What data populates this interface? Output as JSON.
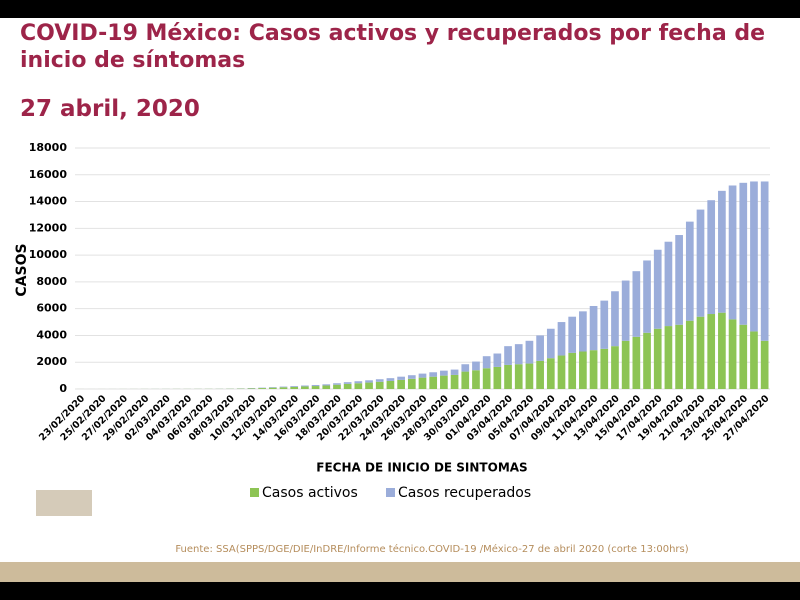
{
  "chart_data": {
    "type": "stacked_bar",
    "title": "COVID-19 México: Casos activos y recuperados por fecha de inicio de síntomas",
    "subtitle": "27 abril, 2020",
    "x_label": "FECHA DE INICIO DE SINTOMAS",
    "y_label": "CASOS",
    "source": "Fuente: SSA(SPPS/DGE/DIE/InDRE/Informe técnico.COVID-19 /México-27 de abril 2020 (corte 13:00hrs)",
    "categories": [
      "23/02/2020",
      null,
      "25/02/2020",
      null,
      "27/02/2020",
      null,
      "29/02/2020",
      null,
      "02/03/2020",
      null,
      "04/03/2020",
      null,
      "06/03/2020",
      null,
      "08/03/2020",
      null,
      "10/03/2020",
      null,
      "12/03/2020",
      null,
      "14/03/2020",
      null,
      "16/03/2020",
      null,
      "18/03/2020",
      null,
      "20/03/2020",
      null,
      "22/03/2020",
      null,
      "24/03/2020",
      null,
      "26/03/2020",
      null,
      "28/03/2020",
      null,
      "30/03/2020",
      null,
      "01/04/2020",
      null,
      "03/04/2020",
      null,
      "05/04/2020",
      null,
      "07/04/2020",
      null,
      "09/04/2020",
      null,
      "11/04/2020",
      null,
      "13/04/2020",
      null,
      "15/04/2020",
      null,
      "17/04/2020",
      null,
      "19/04/2020",
      null,
      "21/04/2020",
      null,
      "23/04/2020",
      null,
      "25/04/2020",
      null,
      "27/04/2020"
    ],
    "series": [
      {
        "name": "Casos activos",
        "color": "#8dc454",
        "values": [
          2,
          1,
          2,
          2,
          3,
          4,
          5,
          5,
          6,
          8,
          8,
          10,
          12,
          12,
          20,
          30,
          50,
          70,
          100,
          130,
          160,
          190,
          220,
          260,
          320,
          380,
          430,
          480,
          540,
          600,
          680,
          760,
          850,
          920,
          1000,
          1050,
          1300,
          1400,
          1550,
          1650,
          1800,
          1850,
          1900,
          2100,
          2300,
          2500,
          2700,
          2800,
          2900,
          3000,
          3200,
          3600,
          3900,
          4200,
          4500,
          4700,
          4800,
          5100,
          5400,
          5600,
          5700,
          5200,
          4800,
          4300,
          3600
        ]
      },
      {
        "name": "Casos recuperados",
        "color": "#9badda",
        "values": [
          1,
          1,
          1,
          2,
          2,
          3,
          3,
          4,
          4,
          5,
          5,
          6,
          7,
          8,
          10,
          15,
          25,
          30,
          40,
          50,
          60,
          70,
          80,
          90,
          110,
          130,
          150,
          170,
          190,
          210,
          240,
          270,
          300,
          330,
          370,
          400,
          550,
          650,
          900,
          1000,
          1400,
          1500,
          1700,
          1900,
          2200,
          2500,
          2700,
          3000,
          3300,
          3600,
          4100,
          4500,
          4900,
          5400,
          5900,
          6300,
          6700,
          7400,
          8000,
          8500,
          9100,
          10000,
          10600,
          11200,
          11900
        ]
      }
    ],
    "ylim": [
      0,
      18000
    ],
    "yticks": [
      0,
      2000,
      4000,
      6000,
      8000,
      10000,
      12000,
      14000,
      16000,
      18000
    ],
    "grid": true
  }
}
